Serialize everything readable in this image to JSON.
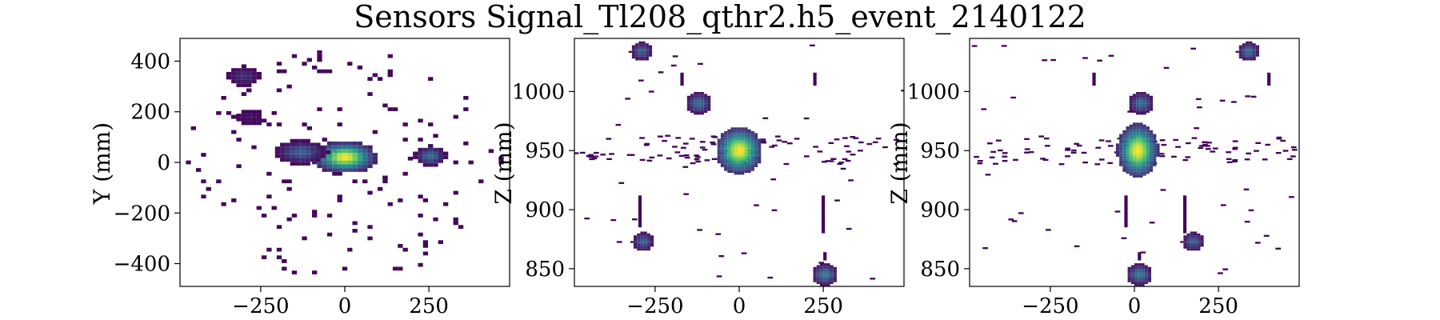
{
  "chart_data": {
    "title": "Sensors Signal_Tl208_qthr2.h5_event_2140122",
    "colormap": "viridis",
    "panels": [
      {
        "type": "heatmap",
        "xlabel": "",
        "ylabel": "Y (mm)",
        "xlim": [
          -490,
          490
        ],
        "ylim": [
          -490,
          490
        ],
        "xticks": [
          -250,
          0,
          250
        ],
        "yticks": [
          -400,
          -200,
          0,
          200,
          400
        ],
        "xtick_labels": [
          "−250",
          "0",
          "250"
        ],
        "ytick_labels": [
          "−400",
          "−200",
          "0",
          "200",
          "400"
        ],
        "background_hits": 150,
        "clusters": [
          {
            "x": 0,
            "y": 20,
            "rx": 60,
            "ry": 40,
            "peak": 1.0
          },
          {
            "x": -130,
            "y": 40,
            "rx": 50,
            "ry": 30,
            "peak": 0.3
          },
          {
            "x": -300,
            "y": 340,
            "rx": 30,
            "ry": 25,
            "peak": 0.15
          },
          {
            "x": -280,
            "y": 180,
            "rx": 25,
            "ry": 20,
            "peak": 0.05
          },
          {
            "x": 255,
            "y": 25,
            "rx": 30,
            "ry": 25,
            "peak": 0.35
          }
        ]
      },
      {
        "type": "heatmap",
        "xlabel": "",
        "ylabel": "Z (mm)",
        "xlim": [
          -490,
          490
        ],
        "ylim": [
          835,
          1045
        ],
        "xticks": [
          -250,
          0,
          250
        ],
        "yticks": [
          850,
          900,
          950,
          1000
        ],
        "xtick_labels": [
          "−250",
          "0",
          "250"
        ],
        "ytick_labels": [
          "850",
          "900",
          "950",
          "1000"
        ],
        "band_z": 950,
        "band_lines": 90,
        "clusters": [
          {
            "x": 0,
            "z": 950,
            "rx": 45,
            "rz": 13,
            "peak": 1.0
          },
          {
            "x": -290,
            "z": 1034,
            "rx": 22,
            "rz": 5,
            "peak": 0.3
          },
          {
            "x": -120,
            "z": 990,
            "rx": 25,
            "rz": 6,
            "peak": 0.35
          },
          {
            "x": -285,
            "z": 873,
            "rx": 22,
            "rz": 5,
            "peak": 0.3
          },
          {
            "x": 255,
            "z": 845,
            "rx": 25,
            "rz": 6,
            "peak": 0.4
          }
        ],
        "columns": [
          {
            "x": -295,
            "z0": 885,
            "z1": 912
          },
          {
            "x": 250,
            "z0": 880,
            "z1": 912
          },
          {
            "x": -170,
            "z0": 1005,
            "z1": 1016
          },
          {
            "x": 225,
            "z0": 1005,
            "z1": 1016
          },
          {
            "x": 255,
            "z0": 857,
            "z1": 864
          }
        ]
      },
      {
        "type": "heatmap",
        "xlabel": "",
        "ylabel": "Z (mm)",
        "xlim": [
          -490,
          490
        ],
        "ylim": [
          835,
          1045
        ],
        "xticks": [
          -250,
          0,
          250
        ],
        "yticks": [
          850,
          900,
          950,
          1000
        ],
        "xtick_labels": [
          "−250",
          "0",
          "250"
        ],
        "ytick_labels": [
          "850",
          "900",
          "950",
          "1000"
        ],
        "band_z": 950,
        "band_lines": 90,
        "clusters": [
          {
            "x": 10,
            "z": 950,
            "rx": 40,
            "rz": 15,
            "peak": 1.0
          },
          {
            "x": 340,
            "z": 1034,
            "rx": 22,
            "rz": 5,
            "peak": 0.35
          },
          {
            "x": 20,
            "z": 990,
            "rx": 25,
            "rz": 6,
            "peak": 0.35
          },
          {
            "x": 175,
            "z": 873,
            "rx": 22,
            "rz": 5,
            "peak": 0.3
          },
          {
            "x": 15,
            "z": 845,
            "rx": 25,
            "rz": 6,
            "peak": 0.4
          }
        ],
        "columns": [
          {
            "x": -25,
            "z0": 885,
            "z1": 912
          },
          {
            "x": 150,
            "z0": 880,
            "z1": 912
          },
          {
            "x": -120,
            "z0": 1005,
            "z1": 1016
          },
          {
            "x": 400,
            "z0": 1005,
            "z1": 1016
          },
          {
            "x": 15,
            "z0": 857,
            "z1": 864
          }
        ]
      }
    ]
  }
}
